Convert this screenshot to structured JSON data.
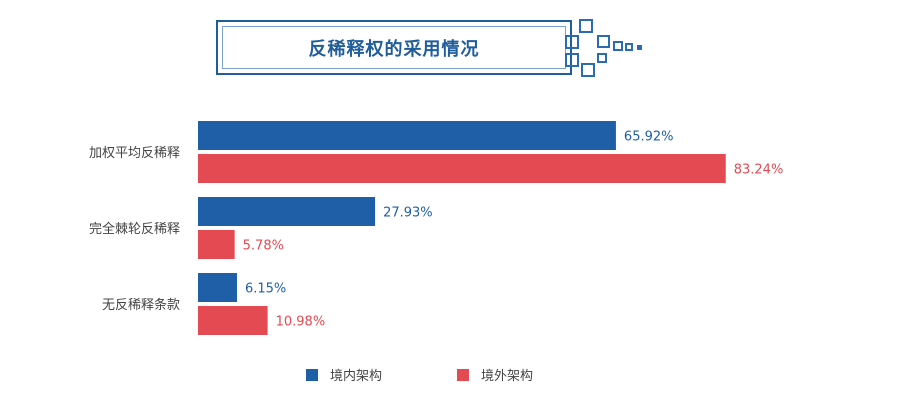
{
  "title": "反稀释权的采用情况",
  "colors": {
    "domestic": "#1f5fa8",
    "overseas": "#e34a52",
    "title": "#1f5d9c"
  },
  "chart_data": {
    "type": "bar",
    "orientation": "horizontal",
    "categories": [
      "加权平均反稀释",
      "完全棘轮反稀释",
      "无反稀释条款"
    ],
    "series": [
      {
        "name": "境内架构",
        "values": [
          65.92,
          27.93,
          6.15
        ],
        "labels": [
          "65.92%",
          "27.93%",
          "6.15%"
        ],
        "color": "#1f5fa8"
      },
      {
        "name": "境外架构",
        "values": [
          83.24,
          5.78,
          10.98
        ],
        "labels": [
          "83.24%",
          "5.78%",
          "10.98%"
        ],
        "color": "#e34a52"
      }
    ],
    "xlim": [
      0,
      100
    ],
    "grid": false,
    "legend_position": "bottom"
  }
}
